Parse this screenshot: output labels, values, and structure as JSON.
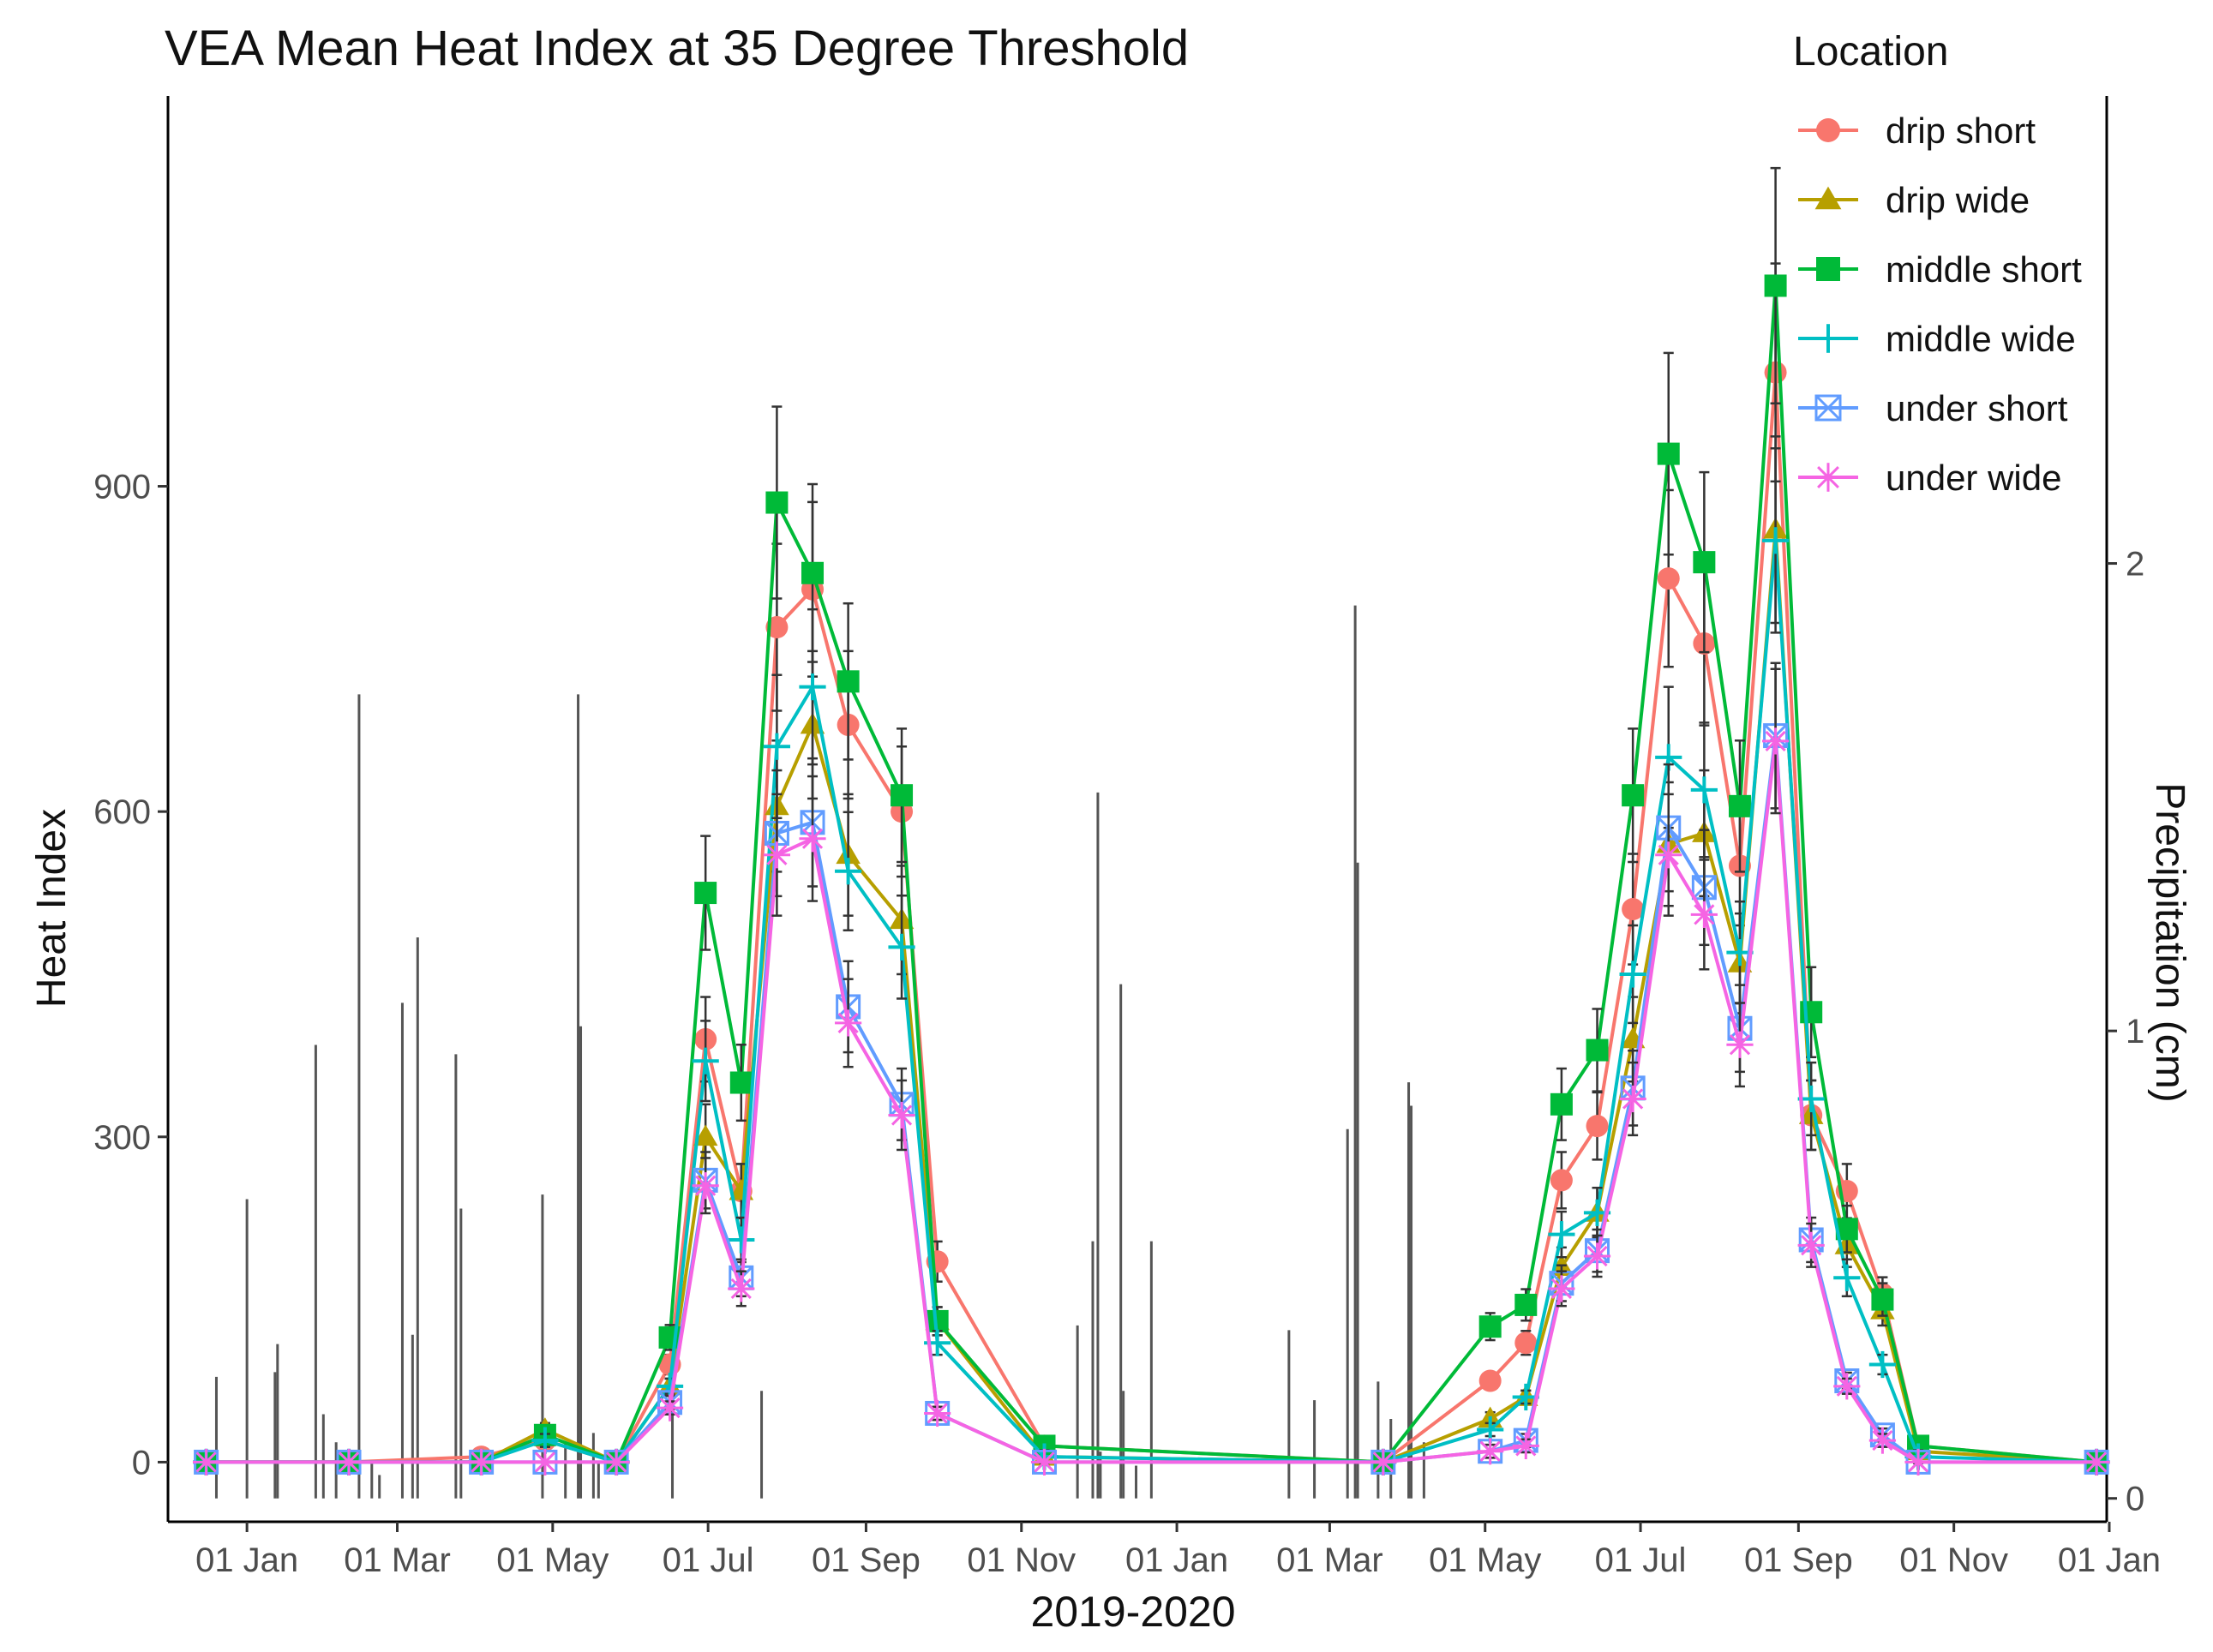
{
  "chart_data": {
    "type": "line",
    "title": "VEA Mean Heat Index at 35 Degree Threshold",
    "xlabel": "2019-2020",
    "ylabel": "Heat Index",
    "y2label": "Precipitation (cm)",
    "xlim": [
      "2018-12-01",
      "2020-12-31"
    ],
    "ylim": [
      -55,
      1260
    ],
    "y2lim": [
      -0.05,
      3.0
    ],
    "x_ticks": [
      {
        "date": "2019-01-01",
        "label": "01 Jan"
      },
      {
        "date": "2019-03-01",
        "label": "01 Mar"
      },
      {
        "date": "2019-05-01",
        "label": "01 May"
      },
      {
        "date": "2019-07-01",
        "label": "01 Jul"
      },
      {
        "date": "2019-09-01",
        "label": "01 Sep"
      },
      {
        "date": "2019-11-01",
        "label": "01 Nov"
      },
      {
        "date": "2020-01-01",
        "label": "01 Jan"
      },
      {
        "date": "2020-03-01",
        "label": "01 Mar"
      },
      {
        "date": "2020-05-01",
        "label": "01 May"
      },
      {
        "date": "2020-07-01",
        "label": "01 Jul"
      },
      {
        "date": "2020-09-01",
        "label": "01 Sep"
      },
      {
        "date": "2020-11-01",
        "label": "01 Nov"
      },
      {
        "date": "2021-01-01",
        "label": "01 Jan"
      }
    ],
    "y_ticks": [
      0,
      300,
      600,
      900
    ],
    "y2_ticks": [
      0,
      1,
      2
    ],
    "legend": {
      "title": "Location",
      "position": "top-right"
    },
    "dates": [
      "2018-12-16",
      "2019-02-10",
      "2019-04-03",
      "2019-04-28",
      "2019-05-26",
      "2019-06-16",
      "2019-06-30",
      "2019-07-14",
      "2019-07-28",
      "2019-08-11",
      "2019-08-25",
      "2019-09-15",
      "2019-09-29",
      "2019-11-10",
      "2020-03-22",
      "2020-05-03",
      "2020-05-17",
      "2020-05-31",
      "2020-06-14",
      "2020-06-28",
      "2020-07-12",
      "2020-07-26",
      "2020-08-09",
      "2020-08-23",
      "2020-09-06",
      "2020-09-20",
      "2020-10-04",
      "2020-10-18",
      "2020-12-27"
    ],
    "series": [
      {
        "name": "drip short",
        "color": "#F8766D",
        "marker": "circle",
        "values": [
          0,
          0,
          5,
          20,
          0,
          90,
          390,
          250,
          770,
          805,
          680,
          600,
          185,
          15,
          0,
          75,
          110,
          260,
          310,
          510,
          815,
          755,
          550,
          1005,
          320,
          250,
          155,
          15,
          0
        ]
      },
      {
        "name": "drip wide",
        "color": "#B79F00",
        "marker": "triangle",
        "values": [
          0,
          0,
          0,
          30,
          0,
          70,
          300,
          250,
          605,
          680,
          560,
          500,
          130,
          5,
          0,
          40,
          60,
          180,
          230,
          390,
          570,
          580,
          460,
          860,
          320,
          200,
          140,
          10,
          0
        ]
      },
      {
        "name": "middle short",
        "color": "#00BA38",
        "marker": "square",
        "values": [
          0,
          0,
          0,
          25,
          0,
          115,
          525,
          350,
          885,
          820,
          720,
          615,
          130,
          15,
          0,
          125,
          145,
          330,
          380,
          615,
          930,
          830,
          605,
          1085,
          415,
          215,
          150,
          15,
          0
        ]
      },
      {
        "name": "middle wide",
        "color": "#00BFC4",
        "marker": "plus",
        "values": [
          0,
          0,
          0,
          20,
          0,
          70,
          370,
          205,
          660,
          715,
          545,
          475,
          110,
          5,
          0,
          30,
          60,
          210,
          230,
          450,
          650,
          620,
          470,
          850,
          335,
          170,
          90,
          5,
          0
        ]
      },
      {
        "name": "under short",
        "color": "#619CFF",
        "marker": "boxx",
        "values": [
          0,
          0,
          0,
          0,
          0,
          55,
          260,
          170,
          580,
          590,
          420,
          330,
          45,
          0,
          0,
          10,
          20,
          165,
          195,
          345,
          585,
          530,
          400,
          670,
          205,
          75,
          25,
          0,
          0
        ]
      },
      {
        "name": "under wide",
        "color": "#F564E3",
        "marker": "asterisk",
        "values": [
          0,
          0,
          0,
          0,
          0,
          50,
          255,
          160,
          560,
          575,
          405,
          320,
          45,
          0,
          0,
          10,
          15,
          160,
          190,
          335,
          560,
          505,
          385,
          665,
          200,
          70,
          20,
          0,
          0
        ]
      }
    ],
    "precipitation": [
      [
        "2018-12-20",
        0.26
      ],
      [
        "2019-01-01",
        0.64
      ],
      [
        "2019-01-12",
        0.27
      ],
      [
        "2019-01-13",
        0.33
      ],
      [
        "2019-01-28",
        0.97
      ],
      [
        "2019-01-31",
        0.18
      ],
      [
        "2019-02-05",
        0.12
      ],
      [
        "2019-02-14",
        1.72
      ],
      [
        "2019-02-19",
        0.08
      ],
      [
        "2019-02-22",
        0.05
      ],
      [
        "2019-03-03",
        1.06
      ],
      [
        "2019-03-07",
        0.35
      ],
      [
        "2019-03-09",
        1.2
      ],
      [
        "2019-03-24",
        0.95
      ],
      [
        "2019-03-26",
        0.62
      ],
      [
        "2019-04-27",
        0.65
      ],
      [
        "2019-05-06",
        0.12
      ],
      [
        "2019-05-11",
        1.72
      ],
      [
        "2019-05-12",
        1.01
      ],
      [
        "2019-05-17",
        0.14
      ],
      [
        "2019-05-19",
        0.08
      ],
      [
        "2019-06-17",
        0.22
      ],
      [
        "2019-07-22",
        0.23
      ],
      [
        "2019-11-23",
        0.37
      ],
      [
        "2019-11-29",
        0.55
      ],
      [
        "2019-12-01",
        1.51
      ],
      [
        "2019-12-02",
        0.1
      ],
      [
        "2019-12-10",
        1.1
      ],
      [
        "2019-12-11",
        0.23
      ],
      [
        "2019-12-16",
        0.07
      ],
      [
        "2019-12-22",
        0.55
      ],
      [
        "2020-02-14",
        0.36
      ],
      [
        "2020-02-24",
        0.21
      ],
      [
        "2020-03-08",
        0.79
      ],
      [
        "2020-03-11",
        1.91
      ],
      [
        "2020-03-12",
        1.36
      ],
      [
        "2020-03-20",
        0.25
      ],
      [
        "2020-03-25",
        0.17
      ],
      [
        "2020-04-01",
        0.89
      ],
      [
        "2020-04-02",
        0.84
      ],
      [
        "2020-04-07",
        0.12
      ]
    ]
  }
}
